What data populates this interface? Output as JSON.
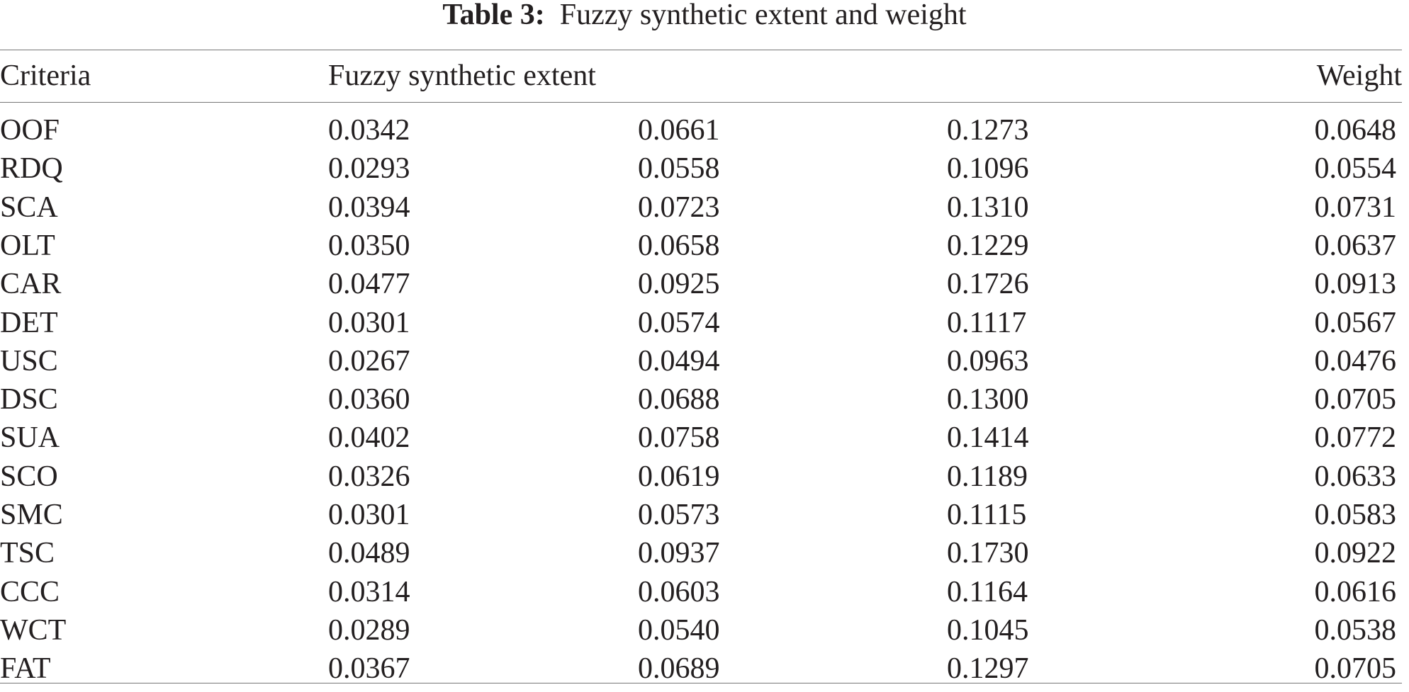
{
  "caption": {
    "label": "Table 3:",
    "text": "Fuzzy synthetic extent and weight"
  },
  "table": {
    "headers": [
      "Criteria",
      "Fuzzy synthetic extent",
      "Weight"
    ],
    "rows": [
      [
        "OOF",
        "0.0342",
        "0.0661",
        "0.1273",
        "0.0648"
      ],
      [
        "RDQ",
        "0.0293",
        "0.0558",
        "0.1096",
        "0.0554"
      ],
      [
        "SCA",
        "0.0394",
        "0.0723",
        "0.1310",
        "0.0731"
      ],
      [
        "OLT",
        "0.0350",
        "0.0658",
        "0.1229",
        "0.0637"
      ],
      [
        "CAR",
        "0.0477",
        "0.0925",
        "0.1726",
        "0.0913"
      ],
      [
        "DET",
        "0.0301",
        "0.0574",
        "0.1117",
        "0.0567"
      ],
      [
        "USC",
        "0.0267",
        "0.0494",
        "0.0963",
        "0.0476"
      ],
      [
        "DSC",
        "0.0360",
        "0.0688",
        "0.1300",
        "0.0705"
      ],
      [
        "SUA",
        "0.0402",
        "0.0758",
        "0.1414",
        "0.0772"
      ],
      [
        "SCO",
        "0.0326",
        "0.0619",
        "0.1189",
        "0.0633"
      ],
      [
        "SMC",
        "0.0301",
        "0.0573",
        "0.1115",
        "0.0583"
      ],
      [
        "TSC",
        "0.0489",
        "0.0937",
        "0.1730",
        "0.0922"
      ],
      [
        "CCC",
        "0.0314",
        "0.0603",
        "0.1164",
        "0.0616"
      ],
      [
        "WCT",
        "0.0289",
        "0.0540",
        "0.1045",
        "0.0538"
      ],
      [
        "FAT",
        "0.0367",
        "0.0689",
        "0.1297",
        "0.0705"
      ]
    ]
  }
}
